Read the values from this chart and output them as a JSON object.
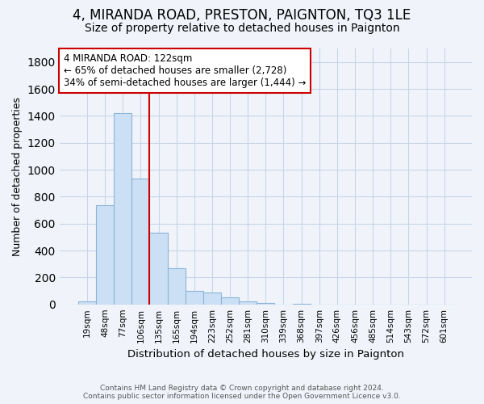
{
  "title": "4, MIRANDA ROAD, PRESTON, PAIGNTON, TQ3 1LE",
  "subtitle": "Size of property relative to detached houses in Paignton",
  "xlabel": "Distribution of detached houses by size in Paignton",
  "ylabel": "Number of detached properties",
  "bar_labels": [
    "19sqm",
    "48sqm",
    "77sqm",
    "106sqm",
    "135sqm",
    "165sqm",
    "194sqm",
    "223sqm",
    "252sqm",
    "281sqm",
    "310sqm",
    "339sqm",
    "368sqm",
    "397sqm",
    "426sqm",
    "456sqm",
    "485sqm",
    "514sqm",
    "543sqm",
    "572sqm",
    "601sqm"
  ],
  "bar_values": [
    20,
    735,
    1420,
    935,
    530,
    270,
    100,
    90,
    50,
    25,
    10,
    0,
    5,
    0,
    0,
    0,
    0,
    0,
    0,
    0,
    0
  ],
  "bar_color": "#cce0f5",
  "bar_edge_color": "#8ab4d8",
  "vline_color": "#cc0000",
  "annotation_title": "4 MIRANDA ROAD: 122sqm",
  "annotation_line1": "← 65% of detached houses are smaller (2,728)",
  "annotation_line2": "34% of semi-detached houses are larger (1,444) →",
  "annotation_box_color": "#ffffff",
  "annotation_box_edge": "#cc0000",
  "ylim": [
    0,
    1900
  ],
  "yticks": [
    0,
    200,
    400,
    600,
    800,
    1000,
    1200,
    1400,
    1600,
    1800
  ],
  "footer1": "Contains HM Land Registry data © Crown copyright and database right 2024.",
  "footer2": "Contains public sector information licensed under the Open Government Licence v3.0.",
  "title_fontsize": 12,
  "subtitle_fontsize": 10,
  "grid_color": "#c8d4e8",
  "background_color": "#f0f4fa"
}
